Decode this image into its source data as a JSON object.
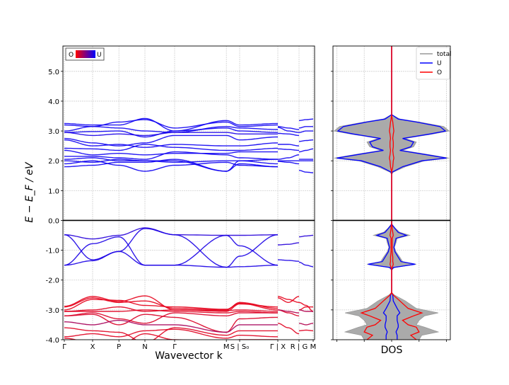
{
  "chart_data": [
    {
      "type": "line",
      "title": "",
      "xlabel": "Wavevector k",
      "ylabel": "E − E_F / eV",
      "ylim": [
        -4.0,
        5.85
      ],
      "xlim": [
        -0.05,
        8.85
      ],
      "grid": true,
      "yticks": [
        {
          "v": 5.0,
          "label": "5.0"
        },
        {
          "v": 4.0,
          "label": "4.0"
        },
        {
          "v": 3.0,
          "label": "3.0"
        },
        {
          "v": 2.0,
          "label": "2.0"
        },
        {
          "v": 1.0,
          "label": "1.0"
        },
        {
          "v": 0.0,
          "label": "0.0"
        },
        {
          "v": -1.0,
          "label": "-1.0"
        },
        {
          "v": -2.0,
          "label": "-2.0"
        },
        {
          "v": -3.0,
          "label": "-3.0"
        },
        {
          "v": -4.0,
          "label": "-4.0"
        }
      ],
      "xticks": [
        {
          "k": 0,
          "label": "Γ"
        },
        {
          "k": 1.0,
          "label": "X"
        },
        {
          "k": 1.93,
          "label": "P"
        },
        {
          "k": 2.85,
          "label": "N"
        },
        {
          "k": 3.9,
          "label": "Γ"
        },
        {
          "k": 5.73,
          "label": "M"
        },
        {
          "k": 6.2,
          "label": "S | S₀"
        },
        {
          "k": 7.55,
          "label": "Γ | X"
        },
        {
          "k": 8.3,
          "label": "R | G"
        },
        {
          "k": 8.8,
          "label": "M"
        }
      ],
      "fermi_level": 0.0,
      "colorbar_legend": {
        "low_label": "O",
        "high_label": "U",
        "low_color": "#ff0000",
        "high_color": "#0000ff"
      },
      "segments": [
        {
          "k": [
            0,
            1.0,
            1.93,
            2.85,
            3.9,
            5.73,
            6.2,
            7.55
          ],
          "bands": [
            {
              "u": 0.95,
              "E": [
                3.25,
                3.2,
                3.2,
                3.42,
                3.0,
                3.35,
                3.2,
                3.25
              ]
            },
            {
              "u": 0.95,
              "E": [
                3.2,
                3.15,
                3.3,
                3.38,
                3.1,
                3.3,
                3.15,
                3.2
              ]
            },
            {
              "u": 0.95,
              "E": [
                3.0,
                3.15,
                3.1,
                3.0,
                2.95,
                3.15,
                3.1,
                3.05
              ]
            },
            {
              "u": 0.95,
              "E": [
                2.95,
                2.98,
                3.0,
                2.8,
                3.0,
                3.1,
                3.0,
                2.95
              ]
            },
            {
              "u": 0.9,
              "E": [
                2.95,
                2.85,
                2.9,
                2.85,
                2.95,
                2.95,
                2.9,
                2.9
              ]
            },
            {
              "u": 0.95,
              "E": [
                2.75,
                2.6,
                2.5,
                2.6,
                2.85,
                2.85,
                2.7,
                2.8
              ]
            },
            {
              "u": 0.95,
              "E": [
                2.7,
                2.5,
                2.55,
                2.45,
                2.55,
                2.5,
                2.5,
                2.6
              ]
            },
            {
              "u": 0.95,
              "E": [
                2.42,
                2.4,
                2.35,
                2.55,
                2.45,
                2.35,
                2.35,
                2.42
              ]
            },
            {
              "u": 0.95,
              "E": [
                2.35,
                2.2,
                2.25,
                2.2,
                2.25,
                2.25,
                2.3,
                2.3
              ]
            },
            {
              "u": 0.95,
              "E": [
                2.15,
                2.15,
                2.1,
                2.05,
                2.3,
                2.2,
                2.1,
                2.05
              ]
            },
            {
              "u": 0.95,
              "E": [
                2.05,
                2.1,
                2.0,
                2.0,
                1.95,
                2.0,
                2.0,
                2.05
              ]
            },
            {
              "u": 0.95,
              "E": [
                2.0,
                1.95,
                2.05,
                2.0,
                2.0,
                1.65,
                2.0,
                1.9
              ]
            },
            {
              "u": 0.95,
              "E": [
                1.9,
                2.0,
                1.85,
                1.65,
                1.85,
                1.95,
                1.85,
                1.8
              ]
            },
            {
              "u": 0.95,
              "E": [
                1.8,
                1.85,
                1.95,
                1.95,
                2.05,
                1.65,
                1.9,
                1.8
              ]
            },
            {
              "u": 0.85,
              "E": [
                -0.48,
                -0.62,
                -0.5,
                -0.25,
                -0.48,
                -0.5,
                -0.5,
                -0.48
              ]
            },
            {
              "u": 0.9,
              "E": [
                -0.48,
                -1.32,
                -1.04,
                -0.27,
                -0.48,
                -1.57,
                -1.2,
                -0.48
              ]
            },
            {
              "u": 0.9,
              "E": [
                -1.5,
                -0.78,
                -0.55,
                -1.5,
                -1.5,
                -0.5,
                -0.85,
                -1.5
              ]
            },
            {
              "u": 0.9,
              "E": [
                -1.5,
                -1.35,
                -1.04,
                -1.5,
                -1.5,
                -1.57,
                -1.55,
                -1.5
              ]
            },
            {
              "u": 0.1,
              "E": [
                -2.88,
                -2.55,
                -2.72,
                -2.53,
                -3.0,
                -3.05,
                -2.8,
                -2.9
              ]
            },
            {
              "u": 0.1,
              "E": [
                -2.9,
                -2.6,
                -2.75,
                -2.7,
                -2.95,
                -3.0,
                -2.75,
                -2.95
              ]
            },
            {
              "u": 0.1,
              "E": [
                -3.0,
                -2.65,
                -2.68,
                -2.85,
                -2.9,
                -2.98,
                -2.78,
                -3.0
              ]
            },
            {
              "u": 0.12,
              "E": [
                -3.05,
                -3.0,
                -2.9,
                -3.05,
                -3.0,
                -3.02,
                -3.0,
                -3.05
              ]
            },
            {
              "u": 0.12,
              "E": [
                -3.05,
                -3.05,
                -3.05,
                -3.0,
                -3.05,
                -3.1,
                -3.05,
                -3.1
              ]
            },
            {
              "u": 0.15,
              "E": [
                -3.2,
                -3.1,
                -3.3,
                -3.45,
                -3.1,
                -3.2,
                -3.1,
                -3.1
              ]
            },
            {
              "u": 0.15,
              "E": [
                -3.2,
                -3.15,
                -3.5,
                -3.15,
                -3.25,
                -3.75,
                -3.3,
                -3.25
              ]
            },
            {
              "u": 0.35,
              "E": [
                -3.4,
                -3.5,
                -3.35,
                -3.5,
                -3.5,
                -3.75,
                -3.5,
                -3.5
              ]
            },
            {
              "u": 0.12,
              "E": [
                -3.6,
                -3.7,
                -3.75,
                -4.1,
                -3.6,
                -3.85,
                -3.7,
                -3.7
              ]
            },
            {
              "u": 0.12,
              "E": [
                -3.9,
                -3.8,
                -3.9,
                -3.7,
                -3.65,
                -3.95,
                -3.85,
                -3.9
              ]
            },
            {
              "u": 0.12,
              "E": [
                -3.95,
                -4.1,
                -4.2,
                -3.8,
                -4.0,
                -4.1,
                -4.0,
                -4.0
              ]
            }
          ]
        },
        {
          "k": [
            7.55,
            7.925,
            8.3
          ],
          "bands": [
            {
              "u": 0.95,
              "E": [
                3.15,
                3.1,
                3.05
              ]
            },
            {
              "u": 0.95,
              "E": [
                3.12,
                3.0,
                2.95
              ]
            },
            {
              "u": 0.95,
              "E": [
                2.92,
                2.9,
                2.85
              ]
            },
            {
              "u": 0.95,
              "E": [
                2.55,
                2.55,
                2.5
              ]
            },
            {
              "u": 0.95,
              "E": [
                2.4,
                2.38,
                2.35
              ]
            },
            {
              "u": 0.95,
              "E": [
                2.05,
                2.1,
                2.2
              ]
            },
            {
              "u": 0.95,
              "E": [
                2.0,
                2.0,
                2.0
              ]
            },
            {
              "u": 0.95,
              "E": [
                1.98,
                1.95,
                1.9
              ]
            },
            {
              "u": 0.85,
              "E": [
                -0.82,
                -0.8,
                -0.75
              ]
            },
            {
              "u": 0.9,
              "E": [
                -1.32,
                -1.34,
                -1.37
              ]
            },
            {
              "u": 0.1,
              "E": [
                -2.6,
                -2.75,
                -2.55
              ]
            },
            {
              "u": 0.1,
              "E": [
                -2.55,
                -2.65,
                -2.75
              ]
            },
            {
              "u": 0.15,
              "E": [
                -3.0,
                -3.1,
                -3.2
              ]
            },
            {
              "u": 0.12,
              "E": [
                -3.45,
                -3.6,
                -3.8
              ]
            },
            {
              "u": 0.3,
              "E": [
                -3.0,
                -3.05,
                -3.1
              ]
            }
          ]
        },
        {
          "k": [
            8.3,
            8.55,
            8.8
          ],
          "bands": [
            {
              "u": 0.95,
              "E": [
                3.35,
                3.38,
                3.4
              ]
            },
            {
              "u": 0.95,
              "E": [
                3.1,
                3.15,
                3.15
              ]
            },
            {
              "u": 0.95,
              "E": [
                2.95,
                3.0,
                3.0
              ]
            },
            {
              "u": 0.95,
              "E": [
                2.65,
                2.68,
                2.7
              ]
            },
            {
              "u": 0.95,
              "E": [
                2.3,
                2.35,
                2.4
              ]
            },
            {
              "u": 0.95,
              "E": [
                2.05,
                2.05,
                2.05
              ]
            },
            {
              "u": 0.95,
              "E": [
                2.0,
                2.0,
                2.0
              ]
            },
            {
              "u": 0.95,
              "E": [
                1.68,
                1.62,
                1.6
              ]
            },
            {
              "u": 0.85,
              "E": [
                -0.55,
                -0.52,
                -0.5
              ]
            },
            {
              "u": 0.9,
              "E": [
                -1.4,
                -1.5,
                -1.55
              ]
            },
            {
              "u": 0.1,
              "E": [
                -2.75,
                -2.85,
                -3.05
              ]
            },
            {
              "u": 0.1,
              "E": [
                -3.0,
                -2.9,
                -2.9
              ]
            },
            {
              "u": 0.3,
              "E": [
                -3.0,
                -3.05,
                -3.05
              ]
            },
            {
              "u": 0.3,
              "E": [
                -3.45,
                -3.5,
                -3.45
              ]
            },
            {
              "u": 0.12,
              "E": [
                -3.7,
                -3.68,
                -3.7
              ]
            }
          ]
        }
      ]
    },
    {
      "type": "area",
      "title": "",
      "xlabel": "DOS",
      "ylim": [
        -4.0,
        5.85
      ],
      "xlim": [
        -1.07,
        1.07
      ],
      "grid": true,
      "legend_position": "top-right",
      "series_colors": {
        "total": "#999999",
        "U": "#0000ff",
        "O": "#ff0000"
      },
      "legend": [
        {
          "key": "total",
          "label": "total"
        },
        {
          "key": "U",
          "label": "U"
        },
        {
          "key": "O",
          "label": "O"
        }
      ],
      "E": [
        5.85,
        3.55,
        3.4,
        3.3,
        3.15,
        3.0,
        2.9,
        2.75,
        2.63,
        2.47,
        2.35,
        2.2,
        2.09,
        2.0,
        1.8,
        1.62,
        1.55,
        -0.12,
        -0.2,
        -0.27,
        -0.4,
        -0.5,
        -0.6,
        -0.75,
        -0.9,
        -1.05,
        -1.23,
        -1.38,
        -1.47,
        -1.58,
        -1.66,
        -2.42,
        -2.5,
        -2.7,
        -2.95,
        -3.1,
        -3.2,
        -3.35,
        -3.5,
        -3.58,
        -3.74,
        -3.85,
        -4.0
      ],
      "total": [
        0,
        0,
        0.15,
        0.5,
        0.95,
        1.05,
        0.75,
        0.25,
        0.45,
        0.4,
        0.2,
        0.7,
        1.05,
        0.6,
        0.25,
        0.03,
        0,
        0,
        0.04,
        0.07,
        0.15,
        0.33,
        0.1,
        0.08,
        0.05,
        0.08,
        0.15,
        0.2,
        0.45,
        0.05,
        0,
        0,
        0.05,
        0.25,
        0.45,
        0.85,
        0.6,
        0.5,
        0.45,
        0.6,
        0.85,
        0.55,
        0.5
      ],
      "U": [
        0,
        0,
        0.12,
        0.45,
        0.88,
        0.98,
        0.7,
        0.2,
        0.4,
        0.35,
        0.15,
        0.65,
        1.0,
        0.55,
        0.2,
        0.01,
        0,
        0,
        0.03,
        0.06,
        0.12,
        0.27,
        0.08,
        0.06,
        0.04,
        0.06,
        0.12,
        0.17,
        0.43,
        0.03,
        0,
        0,
        0.02,
        0.03,
        0.1,
        0.15,
        0.1,
        0.1,
        0.12,
        0.12,
        0.08,
        0.1,
        0.1
      ],
      "O": [
        0,
        0,
        0.01,
        0.02,
        0.03,
        0.04,
        0.03,
        0.02,
        0.03,
        0.03,
        0.02,
        0.03,
        0.04,
        0.03,
        0.02,
        0,
        0,
        0,
        0.01,
        0.01,
        0.02,
        0.03,
        0.01,
        0.01,
        0.01,
        0.01,
        0.02,
        0.02,
        0.03,
        0.01,
        0,
        0,
        0.03,
        0.15,
        0.3,
        0.55,
        0.4,
        0.2,
        0.3,
        0.45,
        0.5,
        0.35,
        0.45
      ]
    }
  ]
}
